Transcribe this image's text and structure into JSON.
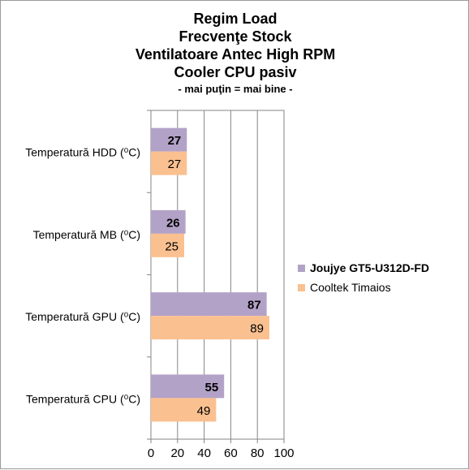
{
  "chart_data": {
    "type": "bar",
    "orientation": "horizontal",
    "title_lines": [
      "Regim Load",
      "Frecvenţe Stock",
      "Ventilatoare Antec High RPM",
      "Cooler CPU pasiv"
    ],
    "subtitle": "- mai puţin = mai bine -",
    "categories": [
      "Temperatură HDD (⁰C)",
      "Temperatură MB (⁰C)",
      "Temperatură GPU (⁰C)",
      "Temperatură CPU (⁰C)"
    ],
    "series": [
      {
        "name": "Joujye GT5-U312D-FD",
        "values": [
          27,
          26,
          87,
          55
        ],
        "color": "#b3a2c7",
        "label_bold": true
      },
      {
        "name": "Cooltek Timaios",
        "values": [
          27,
          25,
          89,
          49
        ],
        "color": "#fac090",
        "label_bold": false
      }
    ],
    "xlim": [
      0,
      100
    ],
    "xticks": [
      0,
      20,
      40,
      60,
      80,
      100
    ],
    "grid": true,
    "legend_position": "right"
  }
}
